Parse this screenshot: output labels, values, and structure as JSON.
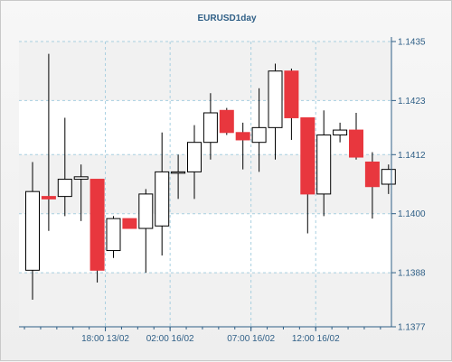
{
  "chart_data": {
    "type": "candlestick",
    "title": "EURUSD1day",
    "up_color": "#ffffff",
    "down_color": "#e8373e",
    "wick_color": "#000000",
    "grid_color": "#a8cfe0",
    "band_color": "#ffffff",
    "axis_color": "#2f5f86",
    "ylim": [
      1.1377,
      1.1435
    ],
    "y_ticks": [
      "1.1435",
      "1.1423",
      "1.1412",
      "1.1400",
      "1.1388",
      "1.1377"
    ],
    "x_ticks": [
      {
        "label": "18:00 13/02",
        "index": 4.5
      },
      {
        "label": "02:00 16/02",
        "index": 8.5
      },
      {
        "label": "07:00 16/02",
        "index": 13.5
      },
      {
        "label": "12:00 16/02",
        "index": 17.5
      }
    ],
    "candles": [
      {
        "open": 1.13885,
        "high": 1.14105,
        "low": 1.13825,
        "close": 1.14045
      },
      {
        "open": 1.14035,
        "high": 1.14325,
        "low": 1.13965,
        "close": 1.1403
      },
      {
        "open": 1.14035,
        "high": 1.14195,
        "low": 1.13995,
        "close": 1.1407
      },
      {
        "open": 1.1407,
        "high": 1.141,
        "low": 1.13985,
        "close": 1.14075
      },
      {
        "open": 1.1407,
        "high": 1.1407,
        "low": 1.1386,
        "close": 1.13885
      },
      {
        "open": 1.13925,
        "high": 1.13995,
        "low": 1.1391,
        "close": 1.1399
      },
      {
        "open": 1.1399,
        "high": 1.1399,
        "low": 1.1397,
        "close": 1.1397
      },
      {
        "open": 1.1397,
        "high": 1.1405,
        "low": 1.1388,
        "close": 1.1404
      },
      {
        "open": 1.13975,
        "high": 1.14165,
        "low": 1.13915,
        "close": 1.14085
      },
      {
        "open": 1.14085,
        "high": 1.1412,
        "low": 1.1403,
        "close": 1.14085
      },
      {
        "open": 1.14085,
        "high": 1.1418,
        "low": 1.1403,
        "close": 1.14145
      },
      {
        "open": 1.14145,
        "high": 1.14245,
        "low": 1.1411,
        "close": 1.14205
      },
      {
        "open": 1.1421,
        "high": 1.14215,
        "low": 1.1416,
        "close": 1.14165
      },
      {
        "open": 1.14165,
        "high": 1.14185,
        "low": 1.1409,
        "close": 1.1415
      },
      {
        "open": 1.14145,
        "high": 1.14255,
        "low": 1.14085,
        "close": 1.14175
      },
      {
        "open": 1.14175,
        "high": 1.14305,
        "low": 1.1411,
        "close": 1.1429
      },
      {
        "open": 1.1429,
        "high": 1.14295,
        "low": 1.1415,
        "close": 1.14195
      },
      {
        "open": 1.14195,
        "high": 1.14195,
        "low": 1.1396,
        "close": 1.1404
      },
      {
        "open": 1.1404,
        "high": 1.1421,
        "low": 1.13995,
        "close": 1.1416
      },
      {
        "open": 1.1416,
        "high": 1.14185,
        "low": 1.14145,
        "close": 1.1417
      },
      {
        "open": 1.1417,
        "high": 1.14205,
        "low": 1.1411,
        "close": 1.14115
      },
      {
        "open": 1.14105,
        "high": 1.14125,
        "low": 1.1399,
        "close": 1.14055
      },
      {
        "open": 1.1406,
        "high": 1.141,
        "low": 1.1404,
        "close": 1.1409
      }
    ]
  }
}
